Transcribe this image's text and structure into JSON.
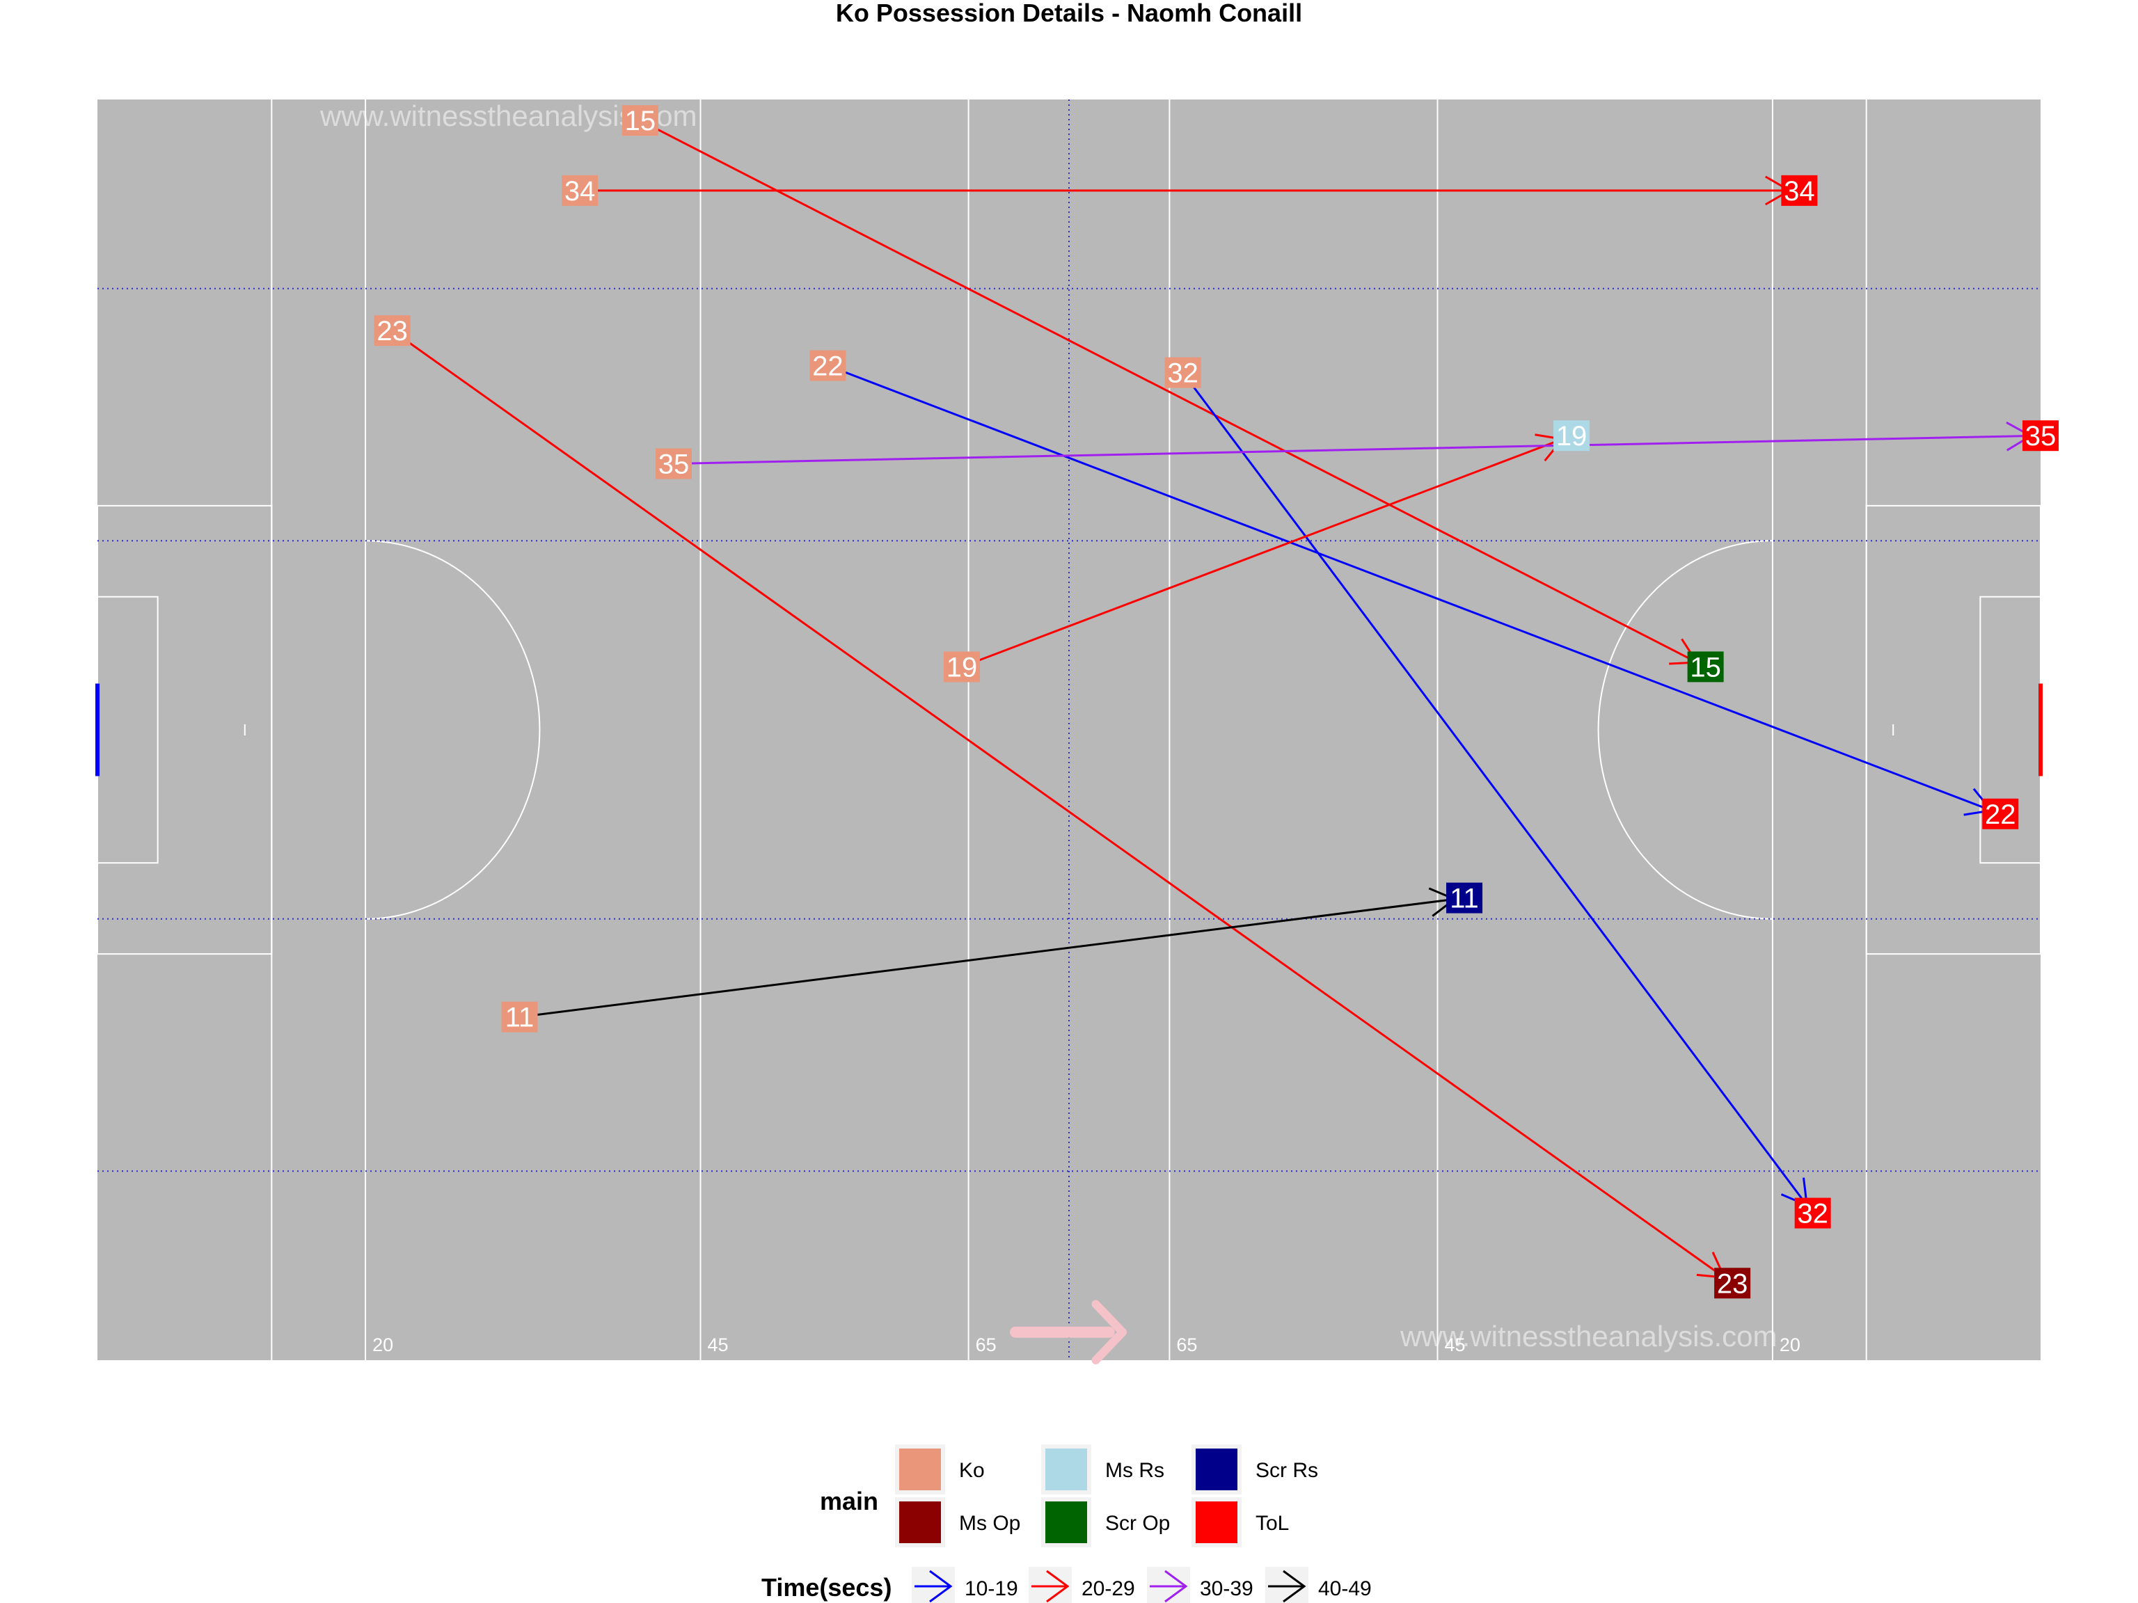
{
  "title": "Ko Possession Details - Naomh Conaill",
  "watermark": "www.witnesstheanalysis.com",
  "chart_data": {
    "type": "scatter",
    "title": "Ko Possession Details - Naomh Conaill",
    "x_range": [
      0,
      145
    ],
    "y_range": [
      0,
      90
    ],
    "grid": false,
    "pitch_markings": [
      {
        "label": "20",
        "x": 20
      },
      {
        "label": "45",
        "x": 45
      },
      {
        "label": "65",
        "x": 65
      },
      {
        "label": "65",
        "x": 80
      },
      {
        "label": "45",
        "x": 100
      },
      {
        "label": "20",
        "x": 125
      }
    ],
    "possessions": [
      {
        "id": "15",
        "start": [
          40.5,
          88.5
        ],
        "end": [
          120,
          49.5
        ],
        "outcome": "Scr Op",
        "time": "20-29"
      },
      {
        "id": "34",
        "start": [
          36,
          83.5
        ],
        "end": [
          127,
          83.5
        ],
        "outcome": "ToL",
        "time": "20-29"
      },
      {
        "id": "23",
        "start": [
          22,
          73.5
        ],
        "end": [
          122,
          5.5
        ],
        "outcome": "Ms Op",
        "time": "20-29"
      },
      {
        "id": "22",
        "start": [
          54.5,
          71
        ],
        "end": [
          142,
          39
        ],
        "outcome": "ToL",
        "time": "10-19"
      },
      {
        "id": "32",
        "start": [
          81,
          70.5
        ],
        "end": [
          128,
          10.5
        ],
        "outcome": "ToL",
        "time": "10-19"
      },
      {
        "id": "19",
        "start": [
          64.5,
          49.5
        ],
        "end": [
          110,
          66
        ],
        "outcome": "Ms Rs",
        "time": "20-29"
      },
      {
        "id": "35",
        "start": [
          43,
          64
        ],
        "end": [
          145,
          66
        ],
        "outcome": "ToL",
        "time": "30-39"
      },
      {
        "id": "11",
        "start": [
          31.5,
          24.5
        ],
        "end": [
          102,
          33
        ],
        "outcome": "Scr Rs",
        "time": "40-49"
      }
    ]
  },
  "legend": {
    "main": {
      "title": "main",
      "items": [
        {
          "label": "Ko",
          "color": "#e9967a"
        },
        {
          "label": "Ms Op",
          "color": "#8b0000"
        },
        {
          "label": "Ms Rs",
          "color": "#add8e6"
        },
        {
          "label": "Scr Op",
          "color": "#006400"
        },
        {
          "label": "Scr Rs",
          "color": "#00008b"
        },
        {
          "label": "ToL",
          "color": "#ff0000"
        }
      ]
    },
    "time": {
      "title": "Time(secs)",
      "items": [
        {
          "label": "10-19",
          "color": "#0000ff"
        },
        {
          "label": "20-29",
          "color": "#ff0000"
        },
        {
          "label": "30-39",
          "color": "#a020f0"
        },
        {
          "label": "40-49",
          "color": "#000000"
        }
      ]
    }
  },
  "colors": {
    "pitch": "#b8b8b8",
    "start_box": "#e9967a",
    "direction_arrow": "#f4c2c8",
    "guide_lines": "#2b2bd6"
  }
}
